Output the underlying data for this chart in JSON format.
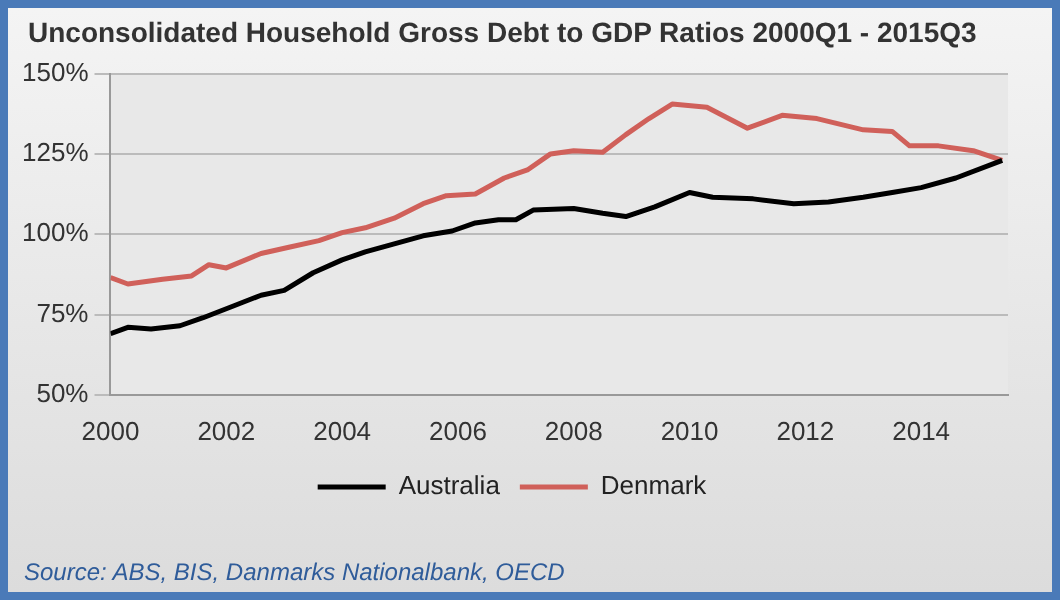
{
  "chart_data": {
    "type": "line",
    "title": "Unconsolidated Household Gross Debt to GDP Ratios 2000Q1  - 2015Q3",
    "series": [
      {
        "name": "Australia",
        "color": "#000000",
        "x": [
          2000,
          2000.3,
          2000.7,
          2001.2,
          2001.6,
          2002.1,
          2002.6,
          2003,
          2003.5,
          2004,
          2004.4,
          2004.9,
          2005.4,
          2005.9,
          2006.3,
          2006.7,
          2007,
          2007.3,
          2008,
          2008.5,
          2008.9,
          2009.4,
          2010,
          2010.4,
          2011.1,
          2011.8,
          2012.4,
          2013,
          2013.5,
          2014,
          2014.6,
          2015.4
        ],
        "values": [
          69,
          71,
          70.5,
          71.5,
          74,
          77.5,
          81,
          82.5,
          88,
          92,
          94.5,
          97,
          99.5,
          101,
          103.5,
          104.5,
          104.5,
          107.5,
          108,
          106.5,
          105.5,
          108.5,
          113,
          111.5,
          111,
          109.5,
          110,
          111.5,
          113,
          114.5,
          117.5,
          123
        ]
      },
      {
        "name": "Denmark",
        "color": "#d0605a",
        "x": [
          2000,
          2000.3,
          2000.9,
          2001.4,
          2001.7,
          2002,
          2002.6,
          2003.1,
          2003.6,
          2004,
          2004.4,
          2004.9,
          2005.4,
          2005.8,
          2006.3,
          2006.8,
          2007.2,
          2007.6,
          2008,
          2008.5,
          2008.9,
          2009.3,
          2009.7,
          2010.3,
          2011,
          2011.6,
          2012.2,
          2013,
          2013.5,
          2013.8,
          2014.3,
          2014.9,
          2015.4
        ],
        "values": [
          86.5,
          84.5,
          86,
          87,
          90.5,
          89.5,
          94,
          96,
          98,
          100.5,
          102,
          105,
          109.5,
          112,
          112.5,
          117.5,
          120,
          125,
          126,
          125.5,
          131,
          136,
          140.5,
          139.5,
          133,
          137,
          136,
          132.5,
          132,
          127.5,
          127.5,
          126,
          123
        ]
      }
    ],
    "xlim": [
      2000,
      2015.5
    ],
    "xticks": [
      2000,
      2002,
      2004,
      2006,
      2008,
      2010,
      2012,
      2014
    ],
    "ylim": [
      50,
      150
    ],
    "yticks": [
      {
        "value": 50,
        "label": "50%"
      },
      {
        "value": 75,
        "label": "75%"
      },
      {
        "value": 100,
        "label": "100%"
      },
      {
        "value": 125,
        "label": "125%"
      },
      {
        "value": 150,
        "label": "150%"
      }
    ],
    "grid": "y",
    "legend": "bottom",
    "marker": "none",
    "line_style": "solid",
    "annotations": [
      "Source: ABS, BIS, Danmarks Nationalbank, OECD"
    ]
  }
}
